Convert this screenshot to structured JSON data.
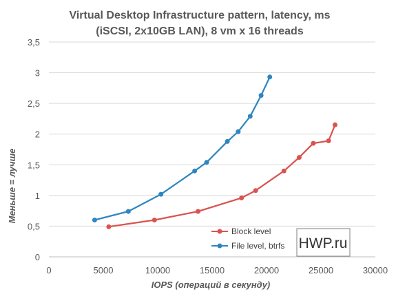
{
  "chart_data": {
    "type": "scatter",
    "title_line1": "Virtual Desktop Infrastructure pattern, latency, ms",
    "title_line2": "(iSCSI, 2x10GB LAN), 8 vm x 16 threads",
    "xlabel": "IOPS (операций в секунду)",
    "ylabel": "Меньше = лучше",
    "xlim": [
      0,
      30000
    ],
    "ylim": [
      0,
      3.5
    ],
    "x_ticks": [
      0,
      5000,
      10000,
      15000,
      20000,
      25000,
      30000
    ],
    "x_tick_labels": [
      "0",
      "5000",
      "10000",
      "15000",
      "20000",
      "25000",
      "30000"
    ],
    "y_ticks": [
      0,
      0.5,
      1,
      1.5,
      2,
      2.5,
      3,
      3.5
    ],
    "y_tick_labels": [
      "0",
      "0,5",
      "1",
      "1,5",
      "2",
      "2,5",
      "3",
      "3,5"
    ],
    "grid": "horizontal",
    "legend_position": "bottom-right",
    "series": [
      {
        "name": "Block level",
        "color": "#d9534f",
        "points": [
          [
            5500,
            0.49
          ],
          [
            9700,
            0.6
          ],
          [
            13700,
            0.74
          ],
          [
            17700,
            0.96
          ],
          [
            19000,
            1.08
          ],
          [
            21600,
            1.4
          ],
          [
            23000,
            1.62
          ],
          [
            24300,
            1.85
          ],
          [
            25700,
            1.89
          ],
          [
            26300,
            2.15
          ]
        ]
      },
      {
        "name": "File level, btrfs",
        "color": "#2e86c1",
        "points": [
          [
            4200,
            0.6
          ],
          [
            7300,
            0.74
          ],
          [
            10300,
            1.02
          ],
          [
            13400,
            1.4
          ],
          [
            14500,
            1.54
          ],
          [
            16400,
            1.88
          ],
          [
            17400,
            2.04
          ],
          [
            18500,
            2.29
          ],
          [
            19500,
            2.63
          ],
          [
            20300,
            2.93
          ]
        ]
      }
    ]
  },
  "watermark": {
    "text": "HWP.ru"
  }
}
